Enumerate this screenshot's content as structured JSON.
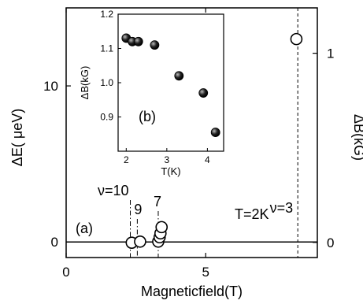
{
  "chart_data": [
    {
      "type": "scatter",
      "panel_label": "(a)",
      "xlabel": "Magneticfield(T)",
      "ylabel_left": "ΔE( μeV)",
      "ylabel_right": "ΔB(kG)",
      "xlim": [
        0,
        9.0
      ],
      "ylim_left": [
        -1,
        15
      ],
      "ylim_right": [
        -0.08,
        1.24
      ],
      "x_ticks": [
        {
          "value": 0,
          "label": "0"
        },
        {
          "value": 5,
          "label": "5"
        }
      ],
      "y_ticks_left": [
        {
          "value": 0,
          "label": "0"
        },
        {
          "value": 10,
          "label": "10"
        }
      ],
      "y_ticks_right": [
        {
          "value": 0,
          "label": "0"
        },
        {
          "value": 1,
          "label": "1"
        }
      ],
      "baseline_y": 0,
      "points": [
        {
          "x": 2.35,
          "y": -0.05
        },
        {
          "x": 2.65,
          "y": 0.02
        },
        {
          "x": 3.3,
          "y": 0.02
        },
        {
          "x": 3.35,
          "y": 0.3
        },
        {
          "x": 3.38,
          "y": 0.55
        },
        {
          "x": 3.42,
          "y": 0.95
        },
        {
          "x": 8.25,
          "y": 13.0
        }
      ],
      "filling_factor_lines": [
        {
          "x": 2.3,
          "label": "ν=10",
          "style": "dashdot"
        },
        {
          "x": 2.55,
          "label": "9",
          "style": "dashdot"
        },
        {
          "x": 3.3,
          "label": "7",
          "style": "dashdot"
        },
        {
          "x": 8.3,
          "label": "ν=3",
          "style": "dashed"
        }
      ],
      "annotation": "T=2K",
      "legend": "none"
    },
    {
      "type": "scatter",
      "panel_label": "(b)",
      "xlabel": "T(K)",
      "ylabel": "ΔB(kG)",
      "xlim": [
        1.8,
        4.4
      ],
      "ylim": [
        0.8,
        1.2
      ],
      "x_ticks": [
        {
          "value": 2,
          "label": "2"
        },
        {
          "value": 3,
          "label": "3"
        },
        {
          "value": 4,
          "label": "4"
        }
      ],
      "y_ticks": [
        {
          "value": 0.9,
          "label": "0.9"
        },
        {
          "value": 1.0,
          "label": "1.0"
        },
        {
          "value": 1.1,
          "label": "1.1"
        },
        {
          "value": 1.2,
          "label": "1.2"
        }
      ],
      "x": [
        2.0,
        2.15,
        2.3,
        2.7,
        3.3,
        3.9,
        4.2
      ],
      "y": [
        1.13,
        1.12,
        1.12,
        1.11,
        1.02,
        0.97,
        0.855
      ],
      "marker": "filled-circle",
      "legend": "none"
    }
  ]
}
